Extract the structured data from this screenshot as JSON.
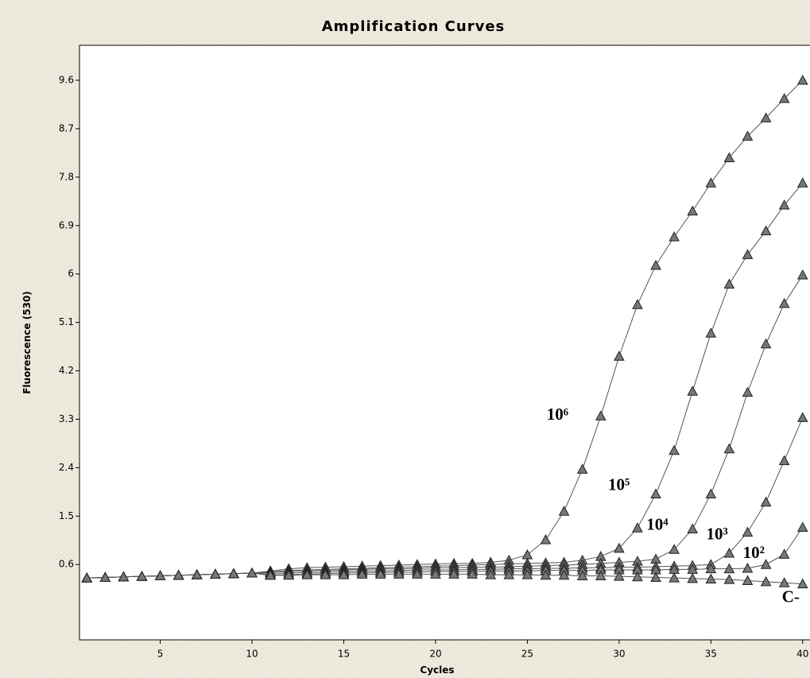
{
  "chart_data": {
    "type": "line",
    "title": "Amplification Curves",
    "x_label": "Cycles",
    "y_label": "Fluorescence (530)",
    "x": [
      1,
      2,
      3,
      4,
      5,
      6,
      7,
      8,
      9,
      10,
      11,
      12,
      13,
      14,
      15,
      16,
      17,
      18,
      19,
      20,
      21,
      22,
      23,
      24,
      25,
      26,
      27,
      28,
      29,
      30,
      31,
      32,
      33,
      34,
      35,
      36,
      37,
      38,
      39,
      40
    ],
    "series": [
      {
        "name": "10⁶",
        "color": "#555555",
        "values": [
          0.35,
          0.36,
          0.37,
          0.38,
          0.39,
          0.4,
          0.41,
          0.42,
          0.43,
          0.44,
          0.48,
          0.52,
          0.54,
          0.55,
          0.56,
          0.57,
          0.58,
          0.59,
          0.6,
          0.61,
          0.62,
          0.62,
          0.64,
          0.68,
          0.78,
          1.06,
          1.59,
          2.37,
          3.36,
          4.47,
          5.43,
          6.16,
          6.69,
          7.17,
          7.69,
          8.16,
          8.56,
          8.9,
          9.26,
          9.6
        ]
      },
      {
        "name": "10⁵",
        "color": "#555555",
        "values": [
          0.35,
          0.36,
          0.37,
          0.38,
          0.39,
          0.4,
          0.41,
          0.42,
          0.43,
          0.44,
          0.46,
          0.49,
          0.5,
          0.51,
          0.52,
          0.53,
          0.54,
          0.55,
          0.56,
          0.57,
          0.58,
          0.59,
          0.6,
          0.61,
          0.62,
          0.63,
          0.64,
          0.68,
          0.75,
          0.9,
          1.28,
          1.91,
          2.72,
          3.82,
          4.9,
          5.81,
          6.36,
          6.8,
          7.28,
          7.69
        ]
      },
      {
        "name": "10⁴",
        "color": "#555555",
        "values": [
          0.35,
          0.36,
          0.37,
          0.38,
          0.39,
          0.4,
          0.41,
          0.42,
          0.43,
          0.44,
          0.45,
          0.47,
          0.48,
          0.49,
          0.5,
          0.51,
          0.52,
          0.52,
          0.53,
          0.54,
          0.54,
          0.55,
          0.55,
          0.56,
          0.57,
          0.58,
          0.59,
          0.6,
          0.62,
          0.64,
          0.66,
          0.7,
          0.88,
          1.26,
          1.91,
          2.75,
          3.8,
          4.7,
          5.45,
          5.98
        ]
      },
      {
        "name": "10³",
        "color": "#555555",
        "values": [
          0.35,
          0.36,
          0.37,
          0.38,
          0.39,
          0.4,
          0.41,
          0.42,
          0.43,
          0.44,
          0.42,
          0.44,
          0.45,
          0.46,
          0.47,
          0.48,
          0.48,
          0.49,
          0.5,
          0.5,
          0.5,
          0.51,
          0.51,
          0.52,
          0.52,
          0.53,
          0.53,
          0.54,
          0.54,
          0.55,
          0.55,
          0.56,
          0.57,
          0.58,
          0.6,
          0.81,
          1.2,
          1.76,
          2.53,
          3.33
        ]
      },
      {
        "name": "10²",
        "color": "#555555",
        "values": [
          0.35,
          0.36,
          0.37,
          0.38,
          0.39,
          0.4,
          0.41,
          0.42,
          0.43,
          0.44,
          0.4,
          0.41,
          0.42,
          0.43,
          0.44,
          0.45,
          0.45,
          0.46,
          0.46,
          0.47,
          0.47,
          0.47,
          0.48,
          0.48,
          0.48,
          0.49,
          0.49,
          0.49,
          0.5,
          0.5,
          0.5,
          0.5,
          0.51,
          0.51,
          0.52,
          0.52,
          0.53,
          0.6,
          0.79,
          1.29
        ]
      },
      {
        "name": "C-",
        "color": "#555555",
        "values": [
          0.35,
          0.36,
          0.37,
          0.38,
          0.39,
          0.4,
          0.41,
          0.42,
          0.43,
          0.44,
          0.4,
          0.4,
          0.41,
          0.41,
          0.41,
          0.42,
          0.42,
          0.42,
          0.42,
          0.42,
          0.42,
          0.42,
          0.41,
          0.41,
          0.41,
          0.4,
          0.4,
          0.39,
          0.39,
          0.38,
          0.37,
          0.36,
          0.35,
          0.34,
          0.33,
          0.32,
          0.3,
          0.28,
          0.26,
          0.24
        ]
      }
    ],
    "xlim": [
      0.6,
      40.4
    ],
    "ylim": [
      -0.8,
      10.25
    ],
    "xticks": [
      5,
      10,
      15,
      20,
      25,
      30,
      35,
      40
    ],
    "yticks": [
      0.6,
      1.5,
      2.4,
      3.3,
      4.2,
      5.1,
      6,
      6.9,
      7.8,
      8.7,
      9.6
    ],
    "marker": "triangle"
  }
}
